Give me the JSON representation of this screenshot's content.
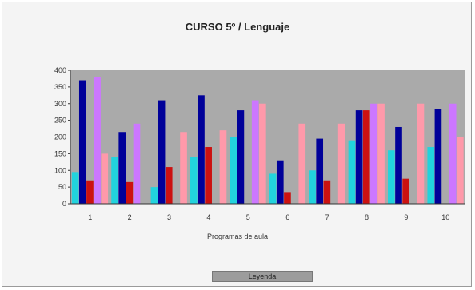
{
  "chart_data": {
    "type": "bar",
    "title": "CURSO 5º / Lenguaje",
    "xlabel": "Programas de aula",
    "ylabel": "",
    "ylim": [
      0,
      400
    ],
    "yticks": [
      0,
      50,
      100,
      150,
      200,
      250,
      300,
      350,
      400
    ],
    "categories": [
      "1",
      "2",
      "3",
      "4",
      "5",
      "6",
      "7",
      "8",
      "9",
      "10"
    ],
    "series": [
      {
        "name": "",
        "color": "#22d3dd",
        "values": [
          95,
          140,
          50,
          140,
          200,
          90,
          100,
          190,
          160,
          170
        ]
      },
      {
        "name": "",
        "color": "#000099",
        "values": [
          370,
          215,
          310,
          325,
          280,
          130,
          195,
          280,
          230,
          285
        ]
      },
      {
        "name": "",
        "color": "#cc1111",
        "values": [
          70,
          65,
          110,
          170,
          0,
          35,
          70,
          280,
          75,
          0
        ]
      },
      {
        "name": "",
        "color": "#cc77ff",
        "values": [
          380,
          240,
          0,
          0,
          310,
          0,
          0,
          300,
          0,
          300
        ]
      },
      {
        "name": "",
        "color": "#ff99aa",
        "values": [
          150,
          0,
          215,
          220,
          300,
          240,
          240,
          300,
          300,
          200
        ]
      }
    ],
    "grid": false,
    "legend": "bottom",
    "plot_background": "#aaaaaa",
    "legend_label": "Leyenda"
  }
}
